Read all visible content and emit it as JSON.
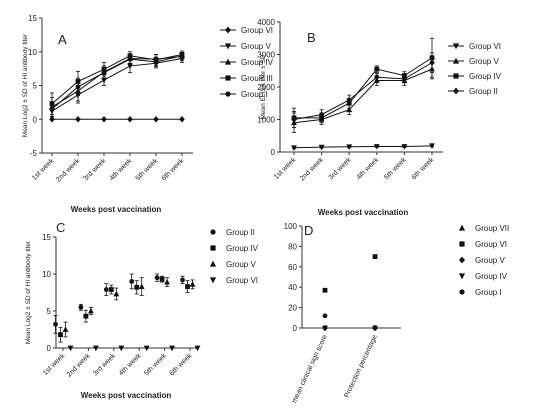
{
  "chart_data": [
    {
      "panel": "A",
      "type": "line",
      "ylabel": "Mean Log2 ± SD of HI antibody titer",
      "xlabel": "Weeks post vaccination",
      "categories": [
        "1st week",
        "2nd week",
        "3rd week",
        "4th week",
        "5th week",
        "6th week"
      ],
      "ylim": [
        -5,
        15
      ],
      "yticks": [
        -5,
        0,
        5,
        10,
        15
      ],
      "legend_position": "right",
      "series": [
        {
          "name": "Group VI",
          "marker": "diamond",
          "values": [
            0,
            0,
            0,
            0,
            0,
            0
          ],
          "err": [
            0,
            0,
            0,
            0,
            0,
            0
          ]
        },
        {
          "name": "Group V",
          "marker": "triangle-down",
          "values": [
            1.2,
            3.6,
            5.8,
            7.9,
            8.3,
            9.0
          ],
          "err": [
            1.0,
            1.2,
            0.8,
            1.0,
            0.7,
            0.6
          ]
        },
        {
          "name": "Group IV",
          "marker": "triangle-up",
          "values": [
            1.8,
            4.2,
            7.0,
            9.0,
            8.9,
            9.3
          ],
          "err": [
            1.4,
            1.5,
            0.9,
            0.7,
            0.7,
            0.6
          ]
        },
        {
          "name": "GrouP III",
          "marker": "square",
          "values": [
            2.3,
            5.6,
            7.4,
            9.4,
            8.8,
            9.6
          ],
          "err": [
            1.6,
            1.5,
            1.0,
            0.6,
            0.8,
            0.5
          ]
        },
        {
          "name": "Group I",
          "marker": "circle",
          "values": [
            1.5,
            4.8,
            6.9,
            8.9,
            8.5,
            9.4
          ],
          "err": [
            1.1,
            1.3,
            0.8,
            0.6,
            0.7,
            0.5
          ]
        }
      ]
    },
    {
      "panel": "B",
      "type": "line",
      "ylabel": "Mean ELISA titer ± SD",
      "xlabel": "Weeks post vaccination",
      "categories": [
        "1st week",
        "2nd week",
        "3rd week",
        "4th week",
        "5th week",
        "6th week"
      ],
      "ylim": [
        0,
        4000
      ],
      "yticks": [
        0,
        1000,
        2000,
        3000,
        4000
      ],
      "legend_position": "right",
      "series": [
        {
          "name": "Group VI",
          "marker": "triangle-down",
          "values": [
            130,
            150,
            160,
            170,
            170,
            190
          ],
          "err": [
            30,
            30,
            30,
            30,
            30,
            30
          ]
        },
        {
          "name": "Group V",
          "marker": "triangle-up",
          "values": [
            900,
            1000,
            1300,
            2200,
            2200,
            2550
          ],
          "err": [
            300,
            150,
            150,
            150,
            150,
            300
          ]
        },
        {
          "name": "Group IV",
          "marker": "square",
          "values": [
            1050,
            1050,
            1500,
            2550,
            2350,
            2900
          ],
          "err": [
            300,
            150,
            150,
            100,
            120,
            600
          ]
        },
        {
          "name": "Group II",
          "marker": "diamond",
          "values": [
            1000,
            1150,
            1600,
            2300,
            2250,
            2750
          ],
          "err": [
            250,
            150,
            150,
            120,
            120,
            300
          ]
        }
      ]
    },
    {
      "panel": "C",
      "type": "scatter",
      "ylabel": "Mean Log2 ± SD of HI antibody titer",
      "xlabel": "Weeks post vaccination",
      "categories": [
        "1st week",
        "2nd week",
        "3rd week",
        "4th week",
        "5th week",
        "6th week"
      ],
      "ylim": [
        0,
        15
      ],
      "yticks": [
        0,
        5,
        10,
        15
      ],
      "legend_position": "right",
      "series": [
        {
          "name": "Group II",
          "marker": "circle",
          "values": [
            3.2,
            5.5,
            7.9,
            9.0,
            9.5,
            9.2
          ],
          "err": [
            1.2,
            0.4,
            0.8,
            1.0,
            0.5,
            0.5
          ]
        },
        {
          "name": "Group IV",
          "marker": "square",
          "values": [
            1.8,
            4.3,
            7.9,
            8.2,
            9.3,
            8.3
          ],
          "err": [
            1.0,
            0.8,
            0.6,
            0.9,
            0.4,
            0.8
          ]
        },
        {
          "name": "Group V",
          "marker": "triangle-up",
          "values": [
            2.5,
            5.0,
            7.3,
            8.3,
            8.9,
            8.6
          ],
          "err": [
            1.0,
            0.5,
            0.8,
            1.2,
            0.6,
            0.6
          ]
        },
        {
          "name": "Group VI",
          "marker": "triangle-down",
          "values": [
            0,
            0,
            0,
            0,
            0,
            0
          ],
          "err": [
            0,
            0,
            0,
            0,
            0,
            0
          ]
        }
      ]
    },
    {
      "panel": "D",
      "type": "scatter",
      "categories": [
        "mean clinical sign score",
        "Protection percentage"
      ],
      "ylim": [
        0,
        100
      ],
      "yticks": [
        0,
        20,
        40,
        60,
        80,
        100
      ],
      "legend_position": "right",
      "series": [
        {
          "name": "Group VII",
          "marker": "triangle-up",
          "values": [
            null,
            null
          ]
        },
        {
          "name": "Group VI",
          "marker": "square",
          "values": [
            37,
            70
          ]
        },
        {
          "name": "Group V",
          "marker": "diamond",
          "values": [
            0,
            0
          ]
        },
        {
          "name": "Group IV",
          "marker": "triangle-down",
          "values": [
            0,
            0
          ]
        },
        {
          "name": "Group I",
          "marker": "circle",
          "values": [
            12,
            0
          ]
        }
      ]
    }
  ]
}
